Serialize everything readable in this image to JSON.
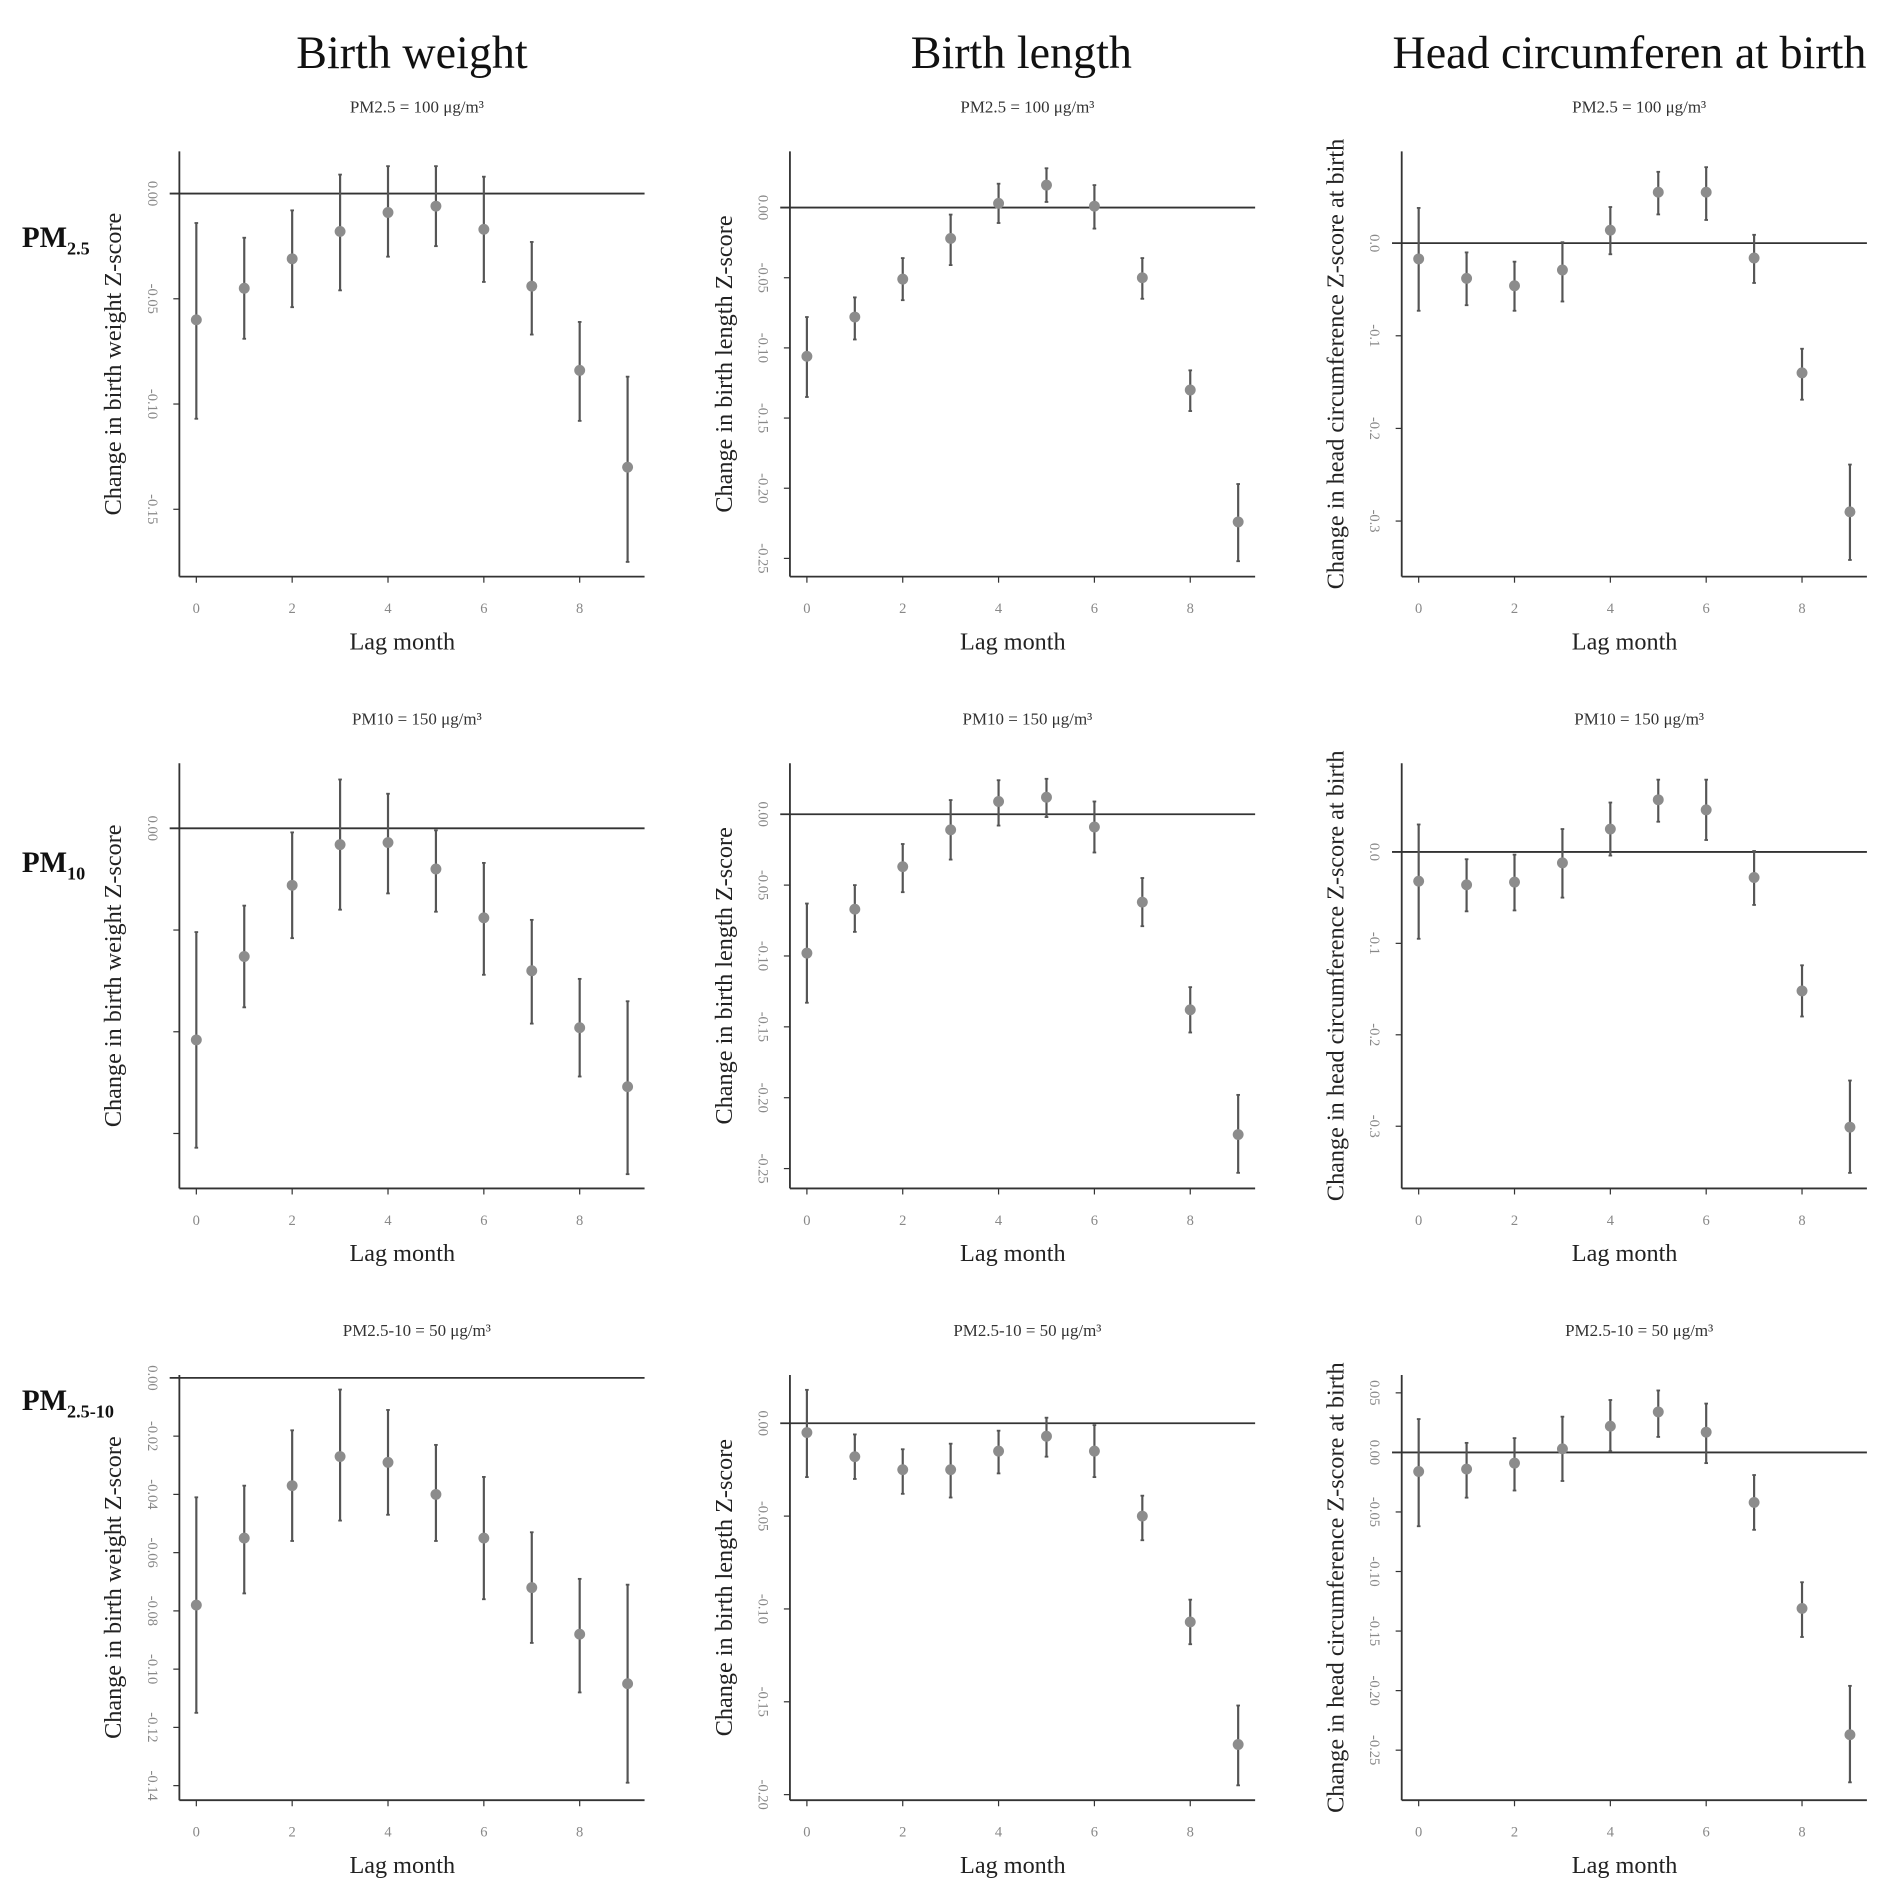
{
  "column_titles": [
    "Birth weight",
    "Birth length",
    "Head circumferen at birth"
  ],
  "row_labels": [
    {
      "main": "PM",
      "sub": "2.5"
    },
    {
      "main": "PM",
      "sub": "10"
    },
    {
      "main": "PM",
      "sub": "2.5-10"
    }
  ],
  "colors": {
    "point": "#8c8c8c",
    "errorbar": "#555555",
    "axis": "#333333",
    "refline": "#333333"
  },
  "chart_data": [
    {
      "type": "scatter",
      "row": 0,
      "col": 0,
      "title": "PM2.5 = 100 μg/m³",
      "xlabel": "Lag month",
      "ylabel": "Change in birth weight Z-score",
      "x": [
        0,
        1,
        2,
        3,
        4,
        5,
        6,
        7,
        8,
        9
      ],
      "xticks": [
        "0",
        "2",
        "4",
        "6",
        "8"
      ],
      "xtick_values": [
        0,
        2,
        4,
        6,
        8
      ],
      "yticks": [
        0,
        -0.05,
        -0.1,
        -0.15
      ],
      "ytick_labels": [
        "0.00",
        "-0.05",
        "-0.10",
        "-0.15"
      ],
      "ylim": [
        -0.182,
        0.02
      ],
      "estimate": [
        -0.06,
        -0.045,
        -0.031,
        -0.018,
        -0.009,
        -0.006,
        -0.017,
        -0.044,
        -0.084,
        -0.13
      ],
      "lower": [
        -0.107,
        -0.069,
        -0.054,
        -0.046,
        -0.03,
        -0.025,
        -0.042,
        -0.067,
        -0.108,
        -0.175
      ],
      "upper": [
        -0.014,
        -0.021,
        -0.008,
        0.009,
        0.013,
        0.013,
        0.008,
        -0.023,
        -0.061,
        -0.087
      ]
    },
    {
      "type": "scatter",
      "row": 0,
      "col": 1,
      "title": "PM2.5 = 100 μg/m³",
      "xlabel": "Lag month",
      "ylabel": "Change in birth length Z-score",
      "x": [
        0,
        1,
        2,
        3,
        4,
        5,
        6,
        7,
        8,
        9
      ],
      "xticks": [
        "0",
        "2",
        "4",
        "6",
        "8"
      ],
      "xtick_values": [
        0,
        2,
        4,
        6,
        8
      ],
      "yticks": [
        0,
        -0.05,
        -0.1,
        -0.15,
        -0.2,
        -0.25
      ],
      "ytick_labels": [
        "0.00",
        "-0.05",
        "-0.10",
        "-0.15",
        "-0.20",
        "-0.25"
      ],
      "ylim": [
        -0.263,
        0.04
      ],
      "estimate": [
        -0.106,
        -0.078,
        -0.051,
        -0.022,
        0.003,
        0.016,
        0.001,
        -0.05,
        -0.13,
        -0.224
      ],
      "lower": [
        -0.135,
        -0.094,
        -0.066,
        -0.041,
        -0.011,
        0.004,
        -0.015,
        -0.065,
        -0.145,
        -0.252
      ],
      "upper": [
        -0.078,
        -0.064,
        -0.036,
        -0.005,
        0.017,
        0.028,
        0.016,
        -0.036,
        -0.116,
        -0.197
      ]
    },
    {
      "type": "scatter",
      "row": 0,
      "col": 2,
      "title": "PM2.5 = 100 μg/m³",
      "xlabel": "Lag month",
      "ylabel": "Change in head circumference Z-score at birth",
      "x": [
        0,
        1,
        2,
        3,
        4,
        5,
        6,
        7,
        8,
        9
      ],
      "xticks": [
        "0",
        "2",
        "4",
        "6",
        "8"
      ],
      "xtick_values": [
        0,
        2,
        4,
        6,
        8
      ],
      "yticks": [
        0,
        -0.1,
        -0.2,
        -0.3
      ],
      "ytick_labels": [
        "0.0",
        "-0.1",
        "-0.2",
        "-0.3"
      ],
      "ylim": [
        -0.36,
        0.099
      ],
      "estimate": [
        -0.017,
        -0.038,
        -0.046,
        -0.029,
        0.014,
        0.055,
        0.055,
        -0.016,
        -0.14,
        -0.29
      ],
      "lower": [
        -0.073,
        -0.067,
        -0.073,
        -0.063,
        -0.012,
        0.031,
        0.025,
        -0.043,
        -0.169,
        -0.342
      ],
      "upper": [
        0.038,
        -0.01,
        -0.02,
        0.001,
        0.039,
        0.077,
        0.082,
        0.009,
        -0.114,
        -0.239
      ]
    },
    {
      "type": "scatter",
      "row": 1,
      "col": 0,
      "title": "PM10 = 150 μg/m³",
      "xlabel": "Lag month",
      "ylabel": "Change in birth weight Z-score",
      "x": [
        0,
        1,
        2,
        3,
        4,
        5,
        6,
        7,
        8,
        9
      ],
      "xticks": [
        "0",
        "2",
        "4",
        "6",
        "8"
      ],
      "xtick_values": [
        0,
        2,
        4,
        6,
        8
      ],
      "yticks": [
        0,
        -0.05,
        -0.1,
        -0.15
      ],
      "ytick_labels": [
        "0.00",
        "",
        "",
        ""
      ],
      "ylim": [
        -0.177,
        0.032
      ],
      "estimate": [
        -0.104,
        -0.063,
        -0.028,
        -0.008,
        -0.007,
        -0.02,
        -0.044,
        -0.07,
        -0.098,
        -0.127
      ],
      "lower": [
        -0.157,
        -0.088,
        -0.054,
        -0.04,
        -0.032,
        -0.041,
        -0.072,
        -0.096,
        -0.122,
        -0.17
      ],
      "upper": [
        -0.051,
        -0.038,
        -0.002,
        0.024,
        0.017,
        -0.001,
        -0.017,
        -0.045,
        -0.074,
        -0.085
      ]
    },
    {
      "type": "scatter",
      "row": 1,
      "col": 1,
      "title": "PM10 = 150 μg/m³",
      "xlabel": "Lag month",
      "ylabel": "Change in birth length Z-score",
      "x": [
        0,
        1,
        2,
        3,
        4,
        5,
        6,
        7,
        8,
        9
      ],
      "xticks": [
        "0",
        "2",
        "4",
        "6",
        "8"
      ],
      "xtick_values": [
        0,
        2,
        4,
        6,
        8
      ],
      "yticks": [
        0,
        -0.05,
        -0.1,
        -0.15,
        -0.2,
        -0.25
      ],
      "ytick_labels": [
        "0.00",
        "-0.05",
        "-0.10",
        "-0.15",
        "-0.20",
        "-0.25"
      ],
      "ylim": [
        -0.264,
        0.036
      ],
      "estimate": [
        -0.098,
        -0.067,
        -0.037,
        -0.011,
        0.009,
        0.012,
        -0.009,
        -0.062,
        -0.138,
        -0.226
      ],
      "lower": [
        -0.133,
        -0.083,
        -0.055,
        -0.032,
        -0.008,
        -0.002,
        -0.027,
        -0.079,
        -0.154,
        -0.253
      ],
      "upper": [
        -0.063,
        -0.05,
        -0.021,
        0.01,
        0.024,
        0.025,
        0.009,
        -0.045,
        -0.122,
        -0.198
      ]
    },
    {
      "type": "scatter",
      "row": 1,
      "col": 2,
      "title": "PM10 = 150 μg/m³",
      "xlabel": "Lag month",
      "ylabel": "Change in head circumference Z-score at birth",
      "x": [
        0,
        1,
        2,
        3,
        4,
        5,
        6,
        7,
        8,
        9
      ],
      "xticks": [
        "0",
        "2",
        "4",
        "6",
        "8"
      ],
      "xtick_values": [
        0,
        2,
        4,
        6,
        8
      ],
      "yticks": [
        0,
        -0.1,
        -0.2,
        -0.3
      ],
      "ytick_labels": [
        "0.0",
        "-0.1",
        "-0.2",
        "-0.3"
      ],
      "ylim": [
        -0.368,
        0.097
      ],
      "estimate": [
        -0.032,
        -0.036,
        -0.033,
        -0.012,
        0.025,
        0.057,
        0.046,
        -0.028,
        -0.152,
        -0.301
      ],
      "lower": [
        -0.095,
        -0.065,
        -0.064,
        -0.05,
        -0.004,
        0.033,
        0.013,
        -0.058,
        -0.18,
        -0.351
      ],
      "upper": [
        0.03,
        -0.008,
        -0.003,
        0.025,
        0.054,
        0.079,
        0.079,
        0.001,
        -0.124,
        -0.25
      ]
    },
    {
      "type": "scatter",
      "row": 2,
      "col": 0,
      "title": "PM2.5-10 = 50 μg/m³",
      "xlabel": "Lag month",
      "ylabel": "Change in birth weight Z-score",
      "x": [
        0,
        1,
        2,
        3,
        4,
        5,
        6,
        7,
        8,
        9
      ],
      "xticks": [
        "0",
        "2",
        "4",
        "6",
        "8"
      ],
      "xtick_values": [
        0,
        2,
        4,
        6,
        8
      ],
      "yticks": [
        0,
        -0.02,
        -0.04,
        -0.06,
        -0.08,
        -0.1,
        -0.12,
        -0.14
      ],
      "ytick_labels": [
        "0.00",
        "-0.02",
        "-0.04",
        "-0.06",
        "-0.08",
        "-0.10",
        "-0.12",
        "-0.14"
      ],
      "ylim": [
        -0.145,
        0.001
      ],
      "estimate": [
        -0.078,
        -0.055,
        -0.037,
        -0.027,
        -0.029,
        -0.04,
        -0.055,
        -0.072,
        -0.088,
        -0.105
      ],
      "lower": [
        -0.115,
        -0.074,
        -0.056,
        -0.049,
        -0.047,
        -0.056,
        -0.076,
        -0.091,
        -0.108,
        -0.139
      ],
      "upper": [
        -0.041,
        -0.037,
        -0.018,
        -0.004,
        -0.011,
        -0.023,
        -0.034,
        -0.053,
        -0.069,
        -0.071
      ]
    },
    {
      "type": "scatter",
      "row": 2,
      "col": 1,
      "title": "PM2.5-10 = 50 μg/m³",
      "xlabel": "Lag month",
      "ylabel": "Change in birth length Z-score",
      "x": [
        0,
        1,
        2,
        3,
        4,
        5,
        6,
        7,
        8,
        9
      ],
      "xticks": [
        "0",
        "2",
        "4",
        "6",
        "8"
      ],
      "xtick_values": [
        0,
        2,
        4,
        6,
        8
      ],
      "yticks": [
        0,
        -0.05,
        -0.1,
        -0.15,
        -0.2
      ],
      "ytick_labels": [
        "0.00",
        "-0.05",
        "-0.10",
        "-0.15",
        "-0.20"
      ],
      "ylim": [
        -0.203,
        0.026
      ],
      "estimate": [
        -0.005,
        -0.018,
        -0.025,
        -0.025,
        -0.015,
        -0.007,
        -0.015,
        -0.05,
        -0.107,
        -0.173
      ],
      "lower": [
        -0.029,
        -0.03,
        -0.038,
        -0.04,
        -0.027,
        -0.018,
        -0.029,
        -0.063,
        -0.119,
        -0.195
      ],
      "upper": [
        0.018,
        -0.006,
        -0.014,
        -0.011,
        -0.004,
        0.003,
        -0.001,
        -0.039,
        -0.095,
        -0.152
      ]
    },
    {
      "type": "scatter",
      "row": 2,
      "col": 2,
      "title": "PM2.5-10 = 50 μg/m³",
      "xlabel": "Lag month",
      "ylabel": "Change in head circumference Z-score at birth",
      "x": [
        0,
        1,
        2,
        3,
        4,
        5,
        6,
        7,
        8,
        9
      ],
      "xticks": [
        "0",
        "2",
        "4",
        "6",
        "8"
      ],
      "xtick_values": [
        0,
        2,
        4,
        6,
        8
      ],
      "yticks": [
        0.05,
        0,
        -0.05,
        -0.1,
        -0.15,
        -0.2,
        -0.25
      ],
      "ytick_labels": [
        "0.05",
        "0.00",
        "-0.05",
        "-0.10",
        "-0.15",
        "-0.20",
        "-0.25"
      ],
      "ylim": [
        -0.292,
        0.065
      ],
      "estimate": [
        -0.016,
        -0.014,
        -0.009,
        0.003,
        0.022,
        0.034,
        0.017,
        -0.042,
        -0.131,
        -0.237
      ],
      "lower": [
        -0.062,
        -0.038,
        -0.032,
        -0.024,
        0.001,
        0.013,
        -0.009,
        -0.065,
        -0.155,
        -0.277
      ],
      "upper": [
        0.028,
        0.008,
        0.012,
        0.03,
        0.044,
        0.052,
        0.041,
        -0.019,
        -0.109,
        -0.196
      ]
    }
  ]
}
